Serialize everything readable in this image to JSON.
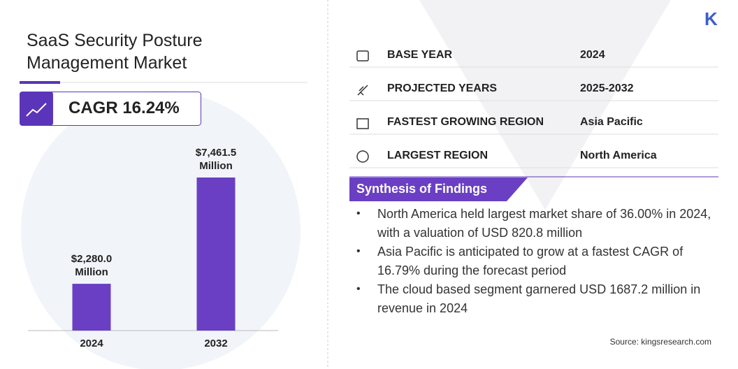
{
  "chart_data": {
    "type": "bar",
    "categories": [
      "2024",
      "2032"
    ],
    "values": [
      2280.0,
      7461.5
    ],
    "value_labels": [
      "$2,280.0 Million",
      "$7,461.5 Million"
    ],
    "color": "#6a3fc4"
  },
  "header": {
    "title": "SaaS Security Posture Management Market",
    "cagr": "CAGR 16.24%"
  },
  "logo": "K",
  "table": {
    "rows": [
      [
        "BASE YEAR",
        "2024"
      ],
      [
        "PROJECTED YEARS",
        "2025-2032"
      ],
      [
        "FASTEST GROWING REGION",
        "Asia Pacific"
      ],
      [
        "LARGEST REGION",
        "North America"
      ]
    ]
  },
  "findings": {
    "title": "Synthesis of Findings",
    "items": [
      "North America held largest market share of 36.00% in 2024, with a valuation of USD 820.8 million",
      "Asia Pacific is anticipated to grow at a fastest CAGR of 16.79% during the forecast period",
      "The cloud based segment garnered USD 1687.2 million in revenue in 2024"
    ]
  },
  "source": "Source: kingsresearch.com"
}
